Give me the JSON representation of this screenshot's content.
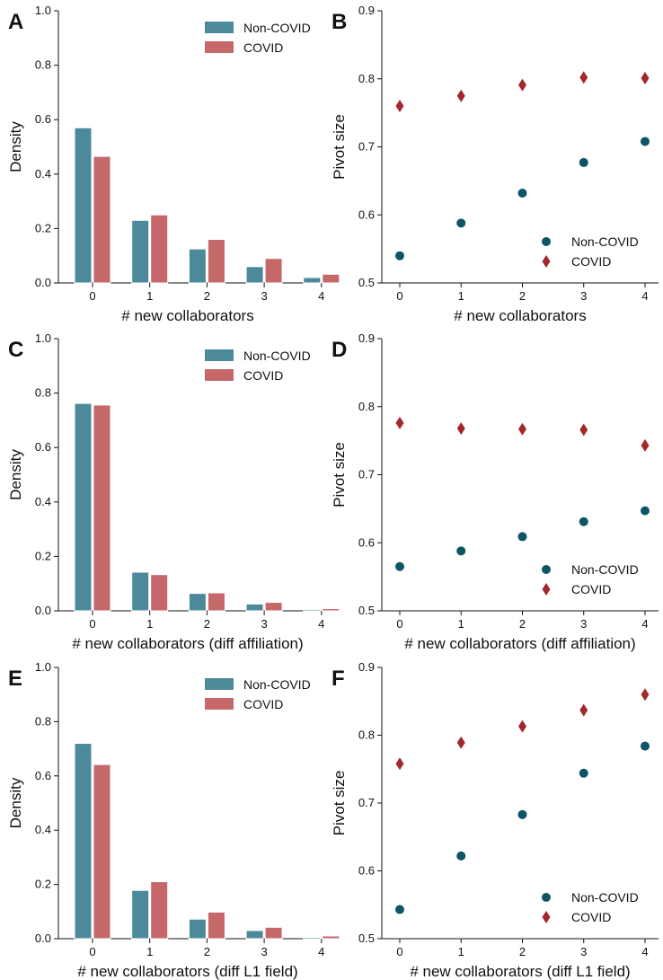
{
  "colors": {
    "noncovid": "#4c8a9b",
    "covid": "#c6676a",
    "noncovid_marker": "#0d5566",
    "covid_marker": "#a3282d",
    "axis": "#111111"
  },
  "chart_data": [
    {
      "panel": "A",
      "type": "bar",
      "categories": [
        "0",
        "1",
        "2",
        "3",
        "4"
      ],
      "series": [
        {
          "name": "Non-COVID",
          "values": [
            0.57,
            0.23,
            0.125,
            0.06,
            0.02
          ]
        },
        {
          "name": "COVID",
          "values": [
            0.465,
            0.25,
            0.16,
            0.09,
            0.032
          ]
        }
      ],
      "xlabel": "# new collaborators",
      "ylabel": "Density",
      "ylim": [
        0,
        1.0
      ],
      "yticks": [
        "0.0",
        "0.2",
        "0.4",
        "0.6",
        "0.8",
        "1.0"
      ],
      "legend": "top-right"
    },
    {
      "panel": "B",
      "type": "scatter",
      "x": [
        0,
        1,
        2,
        3,
        4
      ],
      "xticks": [
        "0",
        "1",
        "2",
        "3",
        "4"
      ],
      "series": [
        {
          "name": "Non-COVID",
          "marker": "circle",
          "values": [
            0.54,
            0.588,
            0.632,
            0.677,
            0.708
          ]
        },
        {
          "name": "COVID",
          "marker": "diamond",
          "values": [
            0.76,
            0.775,
            0.791,
            0.802,
            0.801
          ]
        }
      ],
      "xlabel": "# new collaborators",
      "ylabel": "Pivot size",
      "ylim": [
        0.5,
        0.9
      ],
      "yticks": [
        "0.5",
        "0.6",
        "0.7",
        "0.8",
        "0.9"
      ],
      "legend": "bottom-right"
    },
    {
      "panel": "C",
      "type": "bar",
      "categories": [
        "0",
        "1",
        "2",
        "3",
        "4"
      ],
      "series": [
        {
          "name": "Non-COVID",
          "values": [
            0.762,
            0.142,
            0.064,
            0.025,
            0.005
          ]
        },
        {
          "name": "COVID",
          "values": [
            0.756,
            0.133,
            0.066,
            0.031,
            0.008
          ]
        }
      ],
      "xlabel": "# new collaborators (diff affiliation)",
      "ylabel": "Density",
      "ylim": [
        0,
        1.0
      ],
      "yticks": [
        "0.0",
        "0.2",
        "0.4",
        "0.6",
        "0.8",
        "1.0"
      ],
      "legend": "top-right"
    },
    {
      "panel": "D",
      "type": "scatter",
      "x": [
        0,
        1,
        2,
        3,
        4
      ],
      "xticks": [
        "0",
        "1",
        "2",
        "3",
        "4"
      ],
      "series": [
        {
          "name": "Non-COVID",
          "marker": "circle",
          "values": [
            0.565,
            0.588,
            0.609,
            0.631,
            0.647
          ]
        },
        {
          "name": "COVID",
          "marker": "diamond",
          "values": [
            0.776,
            0.768,
            0.767,
            0.766,
            0.743
          ]
        }
      ],
      "xlabel": "# new collaborators (diff affiliation)",
      "ylabel": "Pivot size",
      "ylim": [
        0.5,
        0.9
      ],
      "yticks": [
        "0.5",
        "0.6",
        "0.7",
        "0.8",
        "0.9"
      ],
      "legend": "bottom-right"
    },
    {
      "panel": "E",
      "type": "bar",
      "categories": [
        "0",
        "1",
        "2",
        "3",
        "4"
      ],
      "series": [
        {
          "name": "Non-COVID",
          "values": [
            0.72,
            0.178,
            0.072,
            0.03,
            0.005
          ]
        },
        {
          "name": "COVID",
          "values": [
            0.642,
            0.21,
            0.098,
            0.042,
            0.01
          ]
        }
      ],
      "xlabel": "# new collaborators (diff L1 field)",
      "ylabel": "Density",
      "ylim": [
        0,
        1.0
      ],
      "yticks": [
        "0.0",
        "0.2",
        "0.4",
        "0.6",
        "0.8",
        "1.0"
      ],
      "legend": "top-right"
    },
    {
      "panel": "F",
      "type": "scatter",
      "x": [
        0,
        1,
        2,
        3,
        4
      ],
      "xticks": [
        "0",
        "1",
        "2",
        "3",
        "4"
      ],
      "series": [
        {
          "name": "Non-COVID",
          "marker": "circle",
          "values": [
            0.543,
            0.622,
            0.683,
            0.744,
            0.784
          ]
        },
        {
          "name": "COVID",
          "marker": "diamond",
          "values": [
            0.758,
            0.789,
            0.813,
            0.837,
            0.86
          ]
        }
      ],
      "xlabel": "# new collaborators (diff L1 field)",
      "ylabel": "Pivot size",
      "ylim": [
        0.5,
        0.9
      ],
      "yticks": [
        "0.5",
        "0.6",
        "0.7",
        "0.8",
        "0.9"
      ],
      "legend": "bottom-right"
    }
  ]
}
